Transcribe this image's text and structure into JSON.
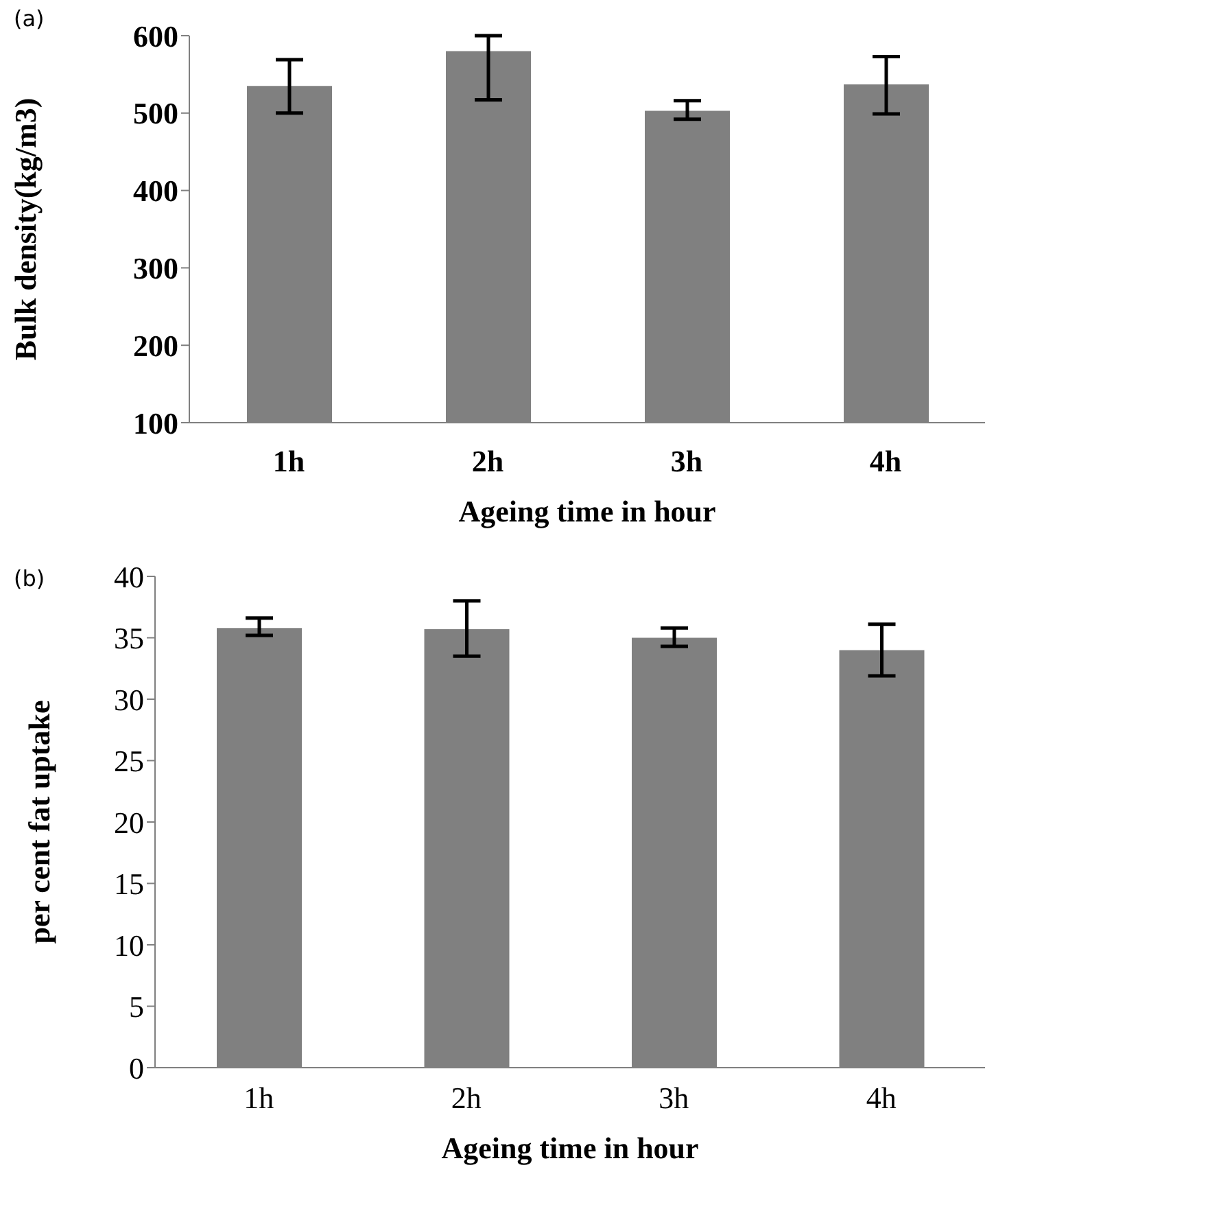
{
  "chart_data": [
    {
      "type": "bar",
      "annotations": [
        "(a)"
      ],
      "xlabel": "Ageing time in hour",
      "ylabel": "Bulk density(kg/m3)",
      "categories": [
        "1h",
        "2h",
        "3h",
        "4h"
      ],
      "values": [
        535,
        580,
        503,
        537
      ],
      "color": "#808080",
      "errors": [
        [
          500,
          569
        ],
        [
          517,
          600
        ],
        [
          492,
          516
        ],
        [
          499,
          573
        ]
      ],
      "ylim": [
        100,
        600
      ],
      "yticks": [
        100,
        200,
        300,
        400,
        500,
        600
      ]
    },
    {
      "type": "bar",
      "annotations": [
        "(b)"
      ],
      "xlabel": "Ageing time in hour",
      "ylabel": "per cent fat uptake",
      "categories": [
        "1h",
        "2h",
        "3h",
        "4h"
      ],
      "values": [
        35.8,
        35.7,
        35.0,
        34.0
      ],
      "color": "#808080",
      "errors": [
        [
          35.2,
          36.6
        ],
        [
          33.5,
          38.0
        ],
        [
          34.3,
          35.8
        ],
        [
          31.9,
          36.1
        ]
      ],
      "ylim": [
        0,
        40
      ],
      "yticks": [
        0,
        5,
        10,
        15,
        20,
        25,
        30,
        35,
        40
      ]
    }
  ]
}
